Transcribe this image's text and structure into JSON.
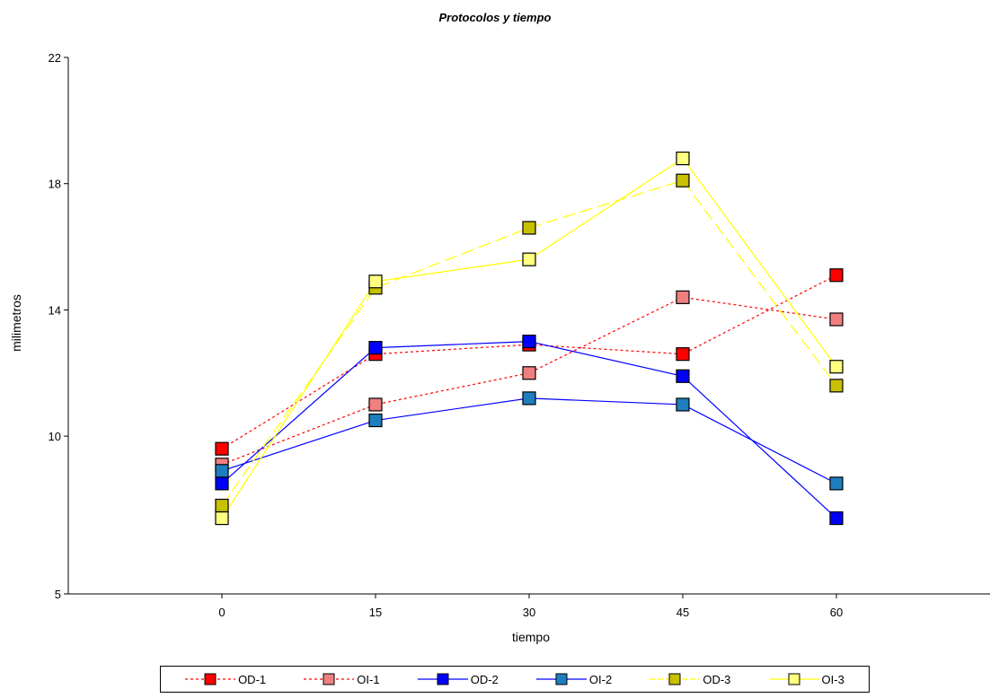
{
  "chart_data": {
    "type": "line",
    "title": "Protocolos y tiempo",
    "xlabel": "tiempo",
    "ylabel": "milimetros",
    "x": [
      0,
      15,
      30,
      45,
      60
    ],
    "x_ticks": [
      "0",
      "15",
      "30",
      "45",
      "60"
    ],
    "xlim": [
      -15,
      75
    ],
    "ylim": [
      5,
      22
    ],
    "y_ticks": [
      "5",
      "10",
      "14",
      "18",
      "22"
    ],
    "grid": false,
    "legend_position": "bottom",
    "series": [
      {
        "name": "OD-1",
        "values": [
          9.6,
          12.6,
          12.9,
          12.6,
          15.1
        ],
        "color": "#ff0000",
        "marker": "#ff0000",
        "dash": "3,3"
      },
      {
        "name": "OI-1",
        "values": [
          9.1,
          11.0,
          12.0,
          14.4,
          13.7
        ],
        "color": "#ff0000",
        "marker": "#f08080",
        "dash": "3,3"
      },
      {
        "name": "OD-2",
        "values": [
          8.5,
          12.8,
          13.0,
          11.9,
          7.4
        ],
        "color": "#0000ff",
        "marker": "#0000ff",
        "dash": ""
      },
      {
        "name": "OI-2",
        "values": [
          8.9,
          10.5,
          11.2,
          11.0,
          8.5
        ],
        "color": "#0000ff",
        "marker": "#1e7fbf",
        "dash": ""
      },
      {
        "name": "OD-3",
        "values": [
          7.8,
          14.7,
          16.6,
          18.1,
          11.6
        ],
        "color": "#ffff00",
        "marker": "#c8c000",
        "dash": "14,6"
      },
      {
        "name": "OI-3",
        "values": [
          7.4,
          14.9,
          15.6,
          18.8,
          12.2
        ],
        "color": "#ffff00",
        "marker": "#ffff80",
        "dash": ""
      }
    ]
  }
}
